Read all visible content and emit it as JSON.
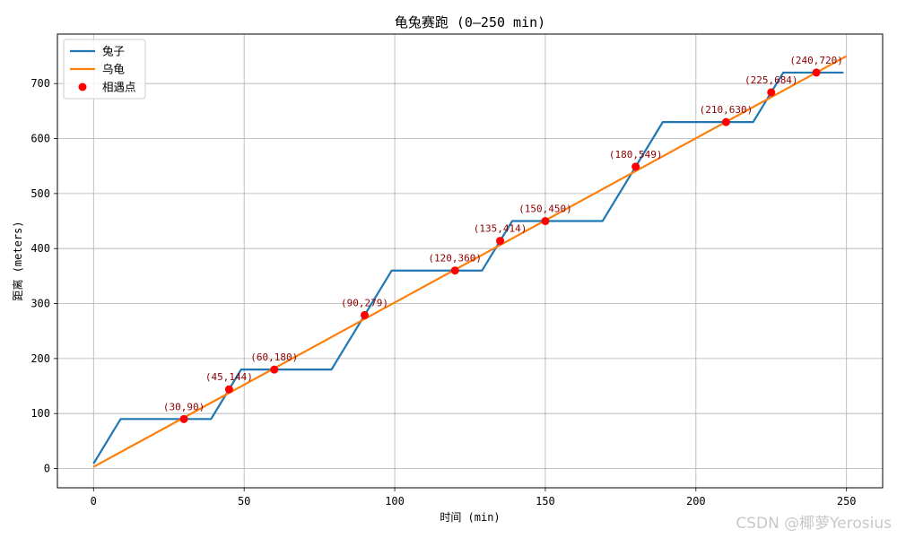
{
  "chart_data": {
    "type": "line",
    "title": "龟兔赛跑 (0–250 min)",
    "xlabel": "时间 (min)",
    "ylabel": "距离 (meters)",
    "xlim": [
      -12,
      262
    ],
    "ylim": [
      -35,
      790
    ],
    "xticks": [
      0,
      50,
      100,
      150,
      200,
      250
    ],
    "yticks": [
      0,
      100,
      200,
      300,
      400,
      500,
      600,
      700
    ],
    "grid": true,
    "legend_position": "top-left",
    "series": [
      {
        "name": "兔子",
        "color": "#1f77b4",
        "x": [
          0,
          9,
          39,
          49,
          79,
          99,
          129,
          139,
          169,
          189,
          219,
          229,
          249
        ],
        "y": [
          9,
          90,
          90,
          180,
          180,
          360,
          360,
          450,
          450,
          630,
          630,
          720,
          720
        ]
      },
      {
        "name": "乌龟",
        "color": "#ff7f0e",
        "x": [
          0,
          250
        ],
        "y": [
          3,
          750
        ]
      }
    ],
    "meeting_points": {
      "name": "相遇点",
      "color": "#ff0000",
      "points": [
        {
          "x": 30,
          "y": 90,
          "label": "(30,90)"
        },
        {
          "x": 45,
          "y": 144,
          "label": "(45,144)"
        },
        {
          "x": 60,
          "y": 180,
          "label": "(60,180)"
        },
        {
          "x": 90,
          "y": 279,
          "label": "(90,279)"
        },
        {
          "x": 120,
          "y": 360,
          "label": "(120,360)"
        },
        {
          "x": 135,
          "y": 414,
          "label": "(135,414)"
        },
        {
          "x": 150,
          "y": 450,
          "label": "(150,450)"
        },
        {
          "x": 180,
          "y": 549,
          "label": "(180,549)"
        },
        {
          "x": 210,
          "y": 630,
          "label": "(210,630)"
        },
        {
          "x": 225,
          "y": 684,
          "label": "(225,684)"
        },
        {
          "x": 240,
          "y": 720,
          "label": "(240,720)"
        }
      ]
    }
  },
  "watermark": "CSDN @椰萝Yerosius"
}
